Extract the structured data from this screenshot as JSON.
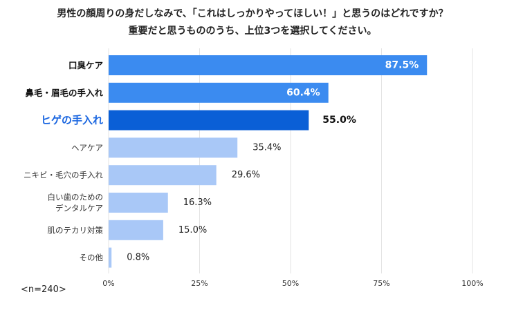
{
  "chart_data": {
    "type": "bar",
    "orientation": "horizontal",
    "title": "男性の顔周りの身だしなみで、「これはしっかりやってほしい！」と思うのはどれですか？",
    "subtitle": "重要だと思うもののうち、上位3つを選択してください。",
    "categories": [
      [
        "口臭ケア"
      ],
      [
        "鼻毛・眉毛の手入れ"
      ],
      [
        "ヒゲの手入れ"
      ],
      [
        "ヘアケア"
      ],
      [
        "ニキビ・毛穴の手入れ"
      ],
      [
        "白い歯のための",
        "デンタルケア"
      ],
      [
        "肌のテカリ対策"
      ],
      [
        "その他"
      ]
    ],
    "values": [
      87.5,
      60.4,
      55.0,
      35.4,
      29.6,
      16.3,
      15.0,
      0.8
    ],
    "value_labels": [
      "87.5%",
      "60.4%",
      "55.0%",
      "35.4%",
      "29.6%",
      "16.3%",
      "15.0%",
      "0.8%"
    ],
    "xlim": [
      0,
      100
    ],
    "xticks": [
      "0%",
      "25%",
      "50%",
      "75%",
      "100%"
    ],
    "grid": true,
    "colors": {
      "top_bar": "#3b8bf0",
      "highlight_bar": "#0a5fd6",
      "other_bar": "#a9c8f7",
      "highlight_label": "#1a66e0",
      "grid": "#e3e3e3"
    },
    "bar_styles": [
      "top",
      "top",
      "highlight",
      "normal",
      "normal",
      "normal",
      "normal",
      "normal"
    ]
  },
  "sample_note": "<n=240>"
}
